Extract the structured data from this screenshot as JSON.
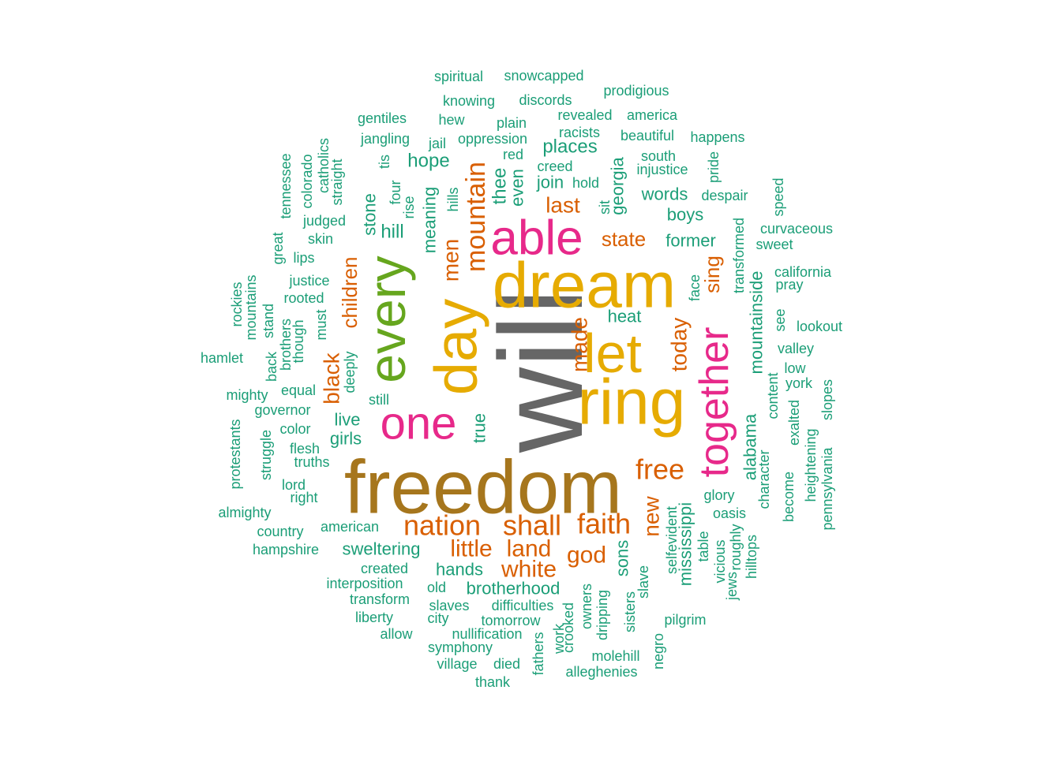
{
  "palette": {
    "teal": "#1b9e77",
    "orange": "#d95f02",
    "pink": "#e7298a",
    "green": "#66a61e",
    "gold": "#e6ab02",
    "brown": "#a6761d",
    "gray": "#666666"
  },
  "words": [
    {
      "text": "will",
      "color": "gray"
    },
    {
      "text": "freedom",
      "color": "brown"
    },
    {
      "text": "dream",
      "color": "gold"
    },
    {
      "text": "ring",
      "color": "gold"
    },
    {
      "text": "let",
      "color": "gold"
    },
    {
      "text": "day",
      "color": "gold"
    },
    {
      "text": "every",
      "color": "green"
    },
    {
      "text": "able",
      "color": "pink"
    },
    {
      "text": "one",
      "color": "pink"
    },
    {
      "text": "together",
      "color": "pink"
    },
    {
      "text": "nation",
      "color": "orange"
    },
    {
      "text": "shall",
      "color": "orange"
    },
    {
      "text": "faith",
      "color": "orange"
    },
    {
      "text": "free",
      "color": "orange"
    },
    {
      "text": "mountain",
      "color": "orange"
    },
    {
      "text": "little",
      "color": "orange"
    },
    {
      "text": "land",
      "color": "orange"
    },
    {
      "text": "white",
      "color": "orange"
    },
    {
      "text": "god",
      "color": "orange"
    },
    {
      "text": "men",
      "color": "orange"
    },
    {
      "text": "made",
      "color": "orange"
    },
    {
      "text": "today",
      "color": "orange"
    },
    {
      "text": "new",
      "color": "orange"
    },
    {
      "text": "black",
      "color": "orange"
    },
    {
      "text": "children",
      "color": "orange"
    },
    {
      "text": "last",
      "color": "orange"
    },
    {
      "text": "state",
      "color": "orange"
    },
    {
      "text": "sing",
      "color": "orange"
    },
    {
      "text": "hill",
      "color": "teal"
    },
    {
      "text": "stone",
      "color": "teal"
    },
    {
      "text": "meaning",
      "color": "teal"
    },
    {
      "text": "hope",
      "color": "teal"
    },
    {
      "text": "places",
      "color": "teal"
    },
    {
      "text": "thee",
      "color": "teal"
    },
    {
      "text": "even",
      "color": "teal"
    },
    {
      "text": "join",
      "color": "teal"
    },
    {
      "text": "georgia",
      "color": "teal"
    },
    {
      "text": "words",
      "color": "teal"
    },
    {
      "text": "boys",
      "color": "teal"
    },
    {
      "text": "former",
      "color": "teal"
    },
    {
      "text": "heat",
      "color": "teal"
    },
    {
      "text": "mountainside",
      "color": "teal"
    },
    {
      "text": "alabama",
      "color": "teal"
    },
    {
      "text": "mississippi",
      "color": "teal"
    },
    {
      "text": "live",
      "color": "teal"
    },
    {
      "text": "girls",
      "color": "teal"
    },
    {
      "text": "true",
      "color": "teal"
    },
    {
      "text": "sweltering",
      "color": "teal"
    },
    {
      "text": "hands",
      "color": "teal"
    },
    {
      "text": "brotherhood",
      "color": "teal"
    },
    {
      "text": "sons",
      "color": "teal"
    },
    {
      "text": "spiritual",
      "color": "teal"
    },
    {
      "text": "snowcapped",
      "color": "teal"
    },
    {
      "text": "prodigious",
      "color": "teal"
    },
    {
      "text": "knowing",
      "color": "teal"
    },
    {
      "text": "discords",
      "color": "teal"
    },
    {
      "text": "gentiles",
      "color": "teal"
    },
    {
      "text": "hew",
      "color": "teal"
    },
    {
      "text": "plain",
      "color": "teal"
    },
    {
      "text": "revealed",
      "color": "teal"
    },
    {
      "text": "america",
      "color": "teal"
    },
    {
      "text": "racists",
      "color": "teal"
    },
    {
      "text": "beautiful",
      "color": "teal"
    },
    {
      "text": "happens",
      "color": "teal"
    },
    {
      "text": "jangling",
      "color": "teal"
    },
    {
      "text": "jail",
      "color": "teal"
    },
    {
      "text": "oppression",
      "color": "teal"
    },
    {
      "text": "red",
      "color": "teal"
    },
    {
      "text": "south",
      "color": "teal"
    },
    {
      "text": "injustice",
      "color": "teal"
    },
    {
      "text": "creed",
      "color": "teal"
    },
    {
      "text": "hold",
      "color": "teal"
    },
    {
      "text": "despair",
      "color": "teal"
    },
    {
      "text": "pride",
      "color": "teal"
    },
    {
      "text": "speed",
      "color": "teal"
    },
    {
      "text": "curvaceous",
      "color": "teal"
    },
    {
      "text": "sweet",
      "color": "teal"
    },
    {
      "text": "california",
      "color": "teal"
    },
    {
      "text": "pray",
      "color": "teal"
    },
    {
      "text": "transformed",
      "color": "teal"
    },
    {
      "text": "face",
      "color": "teal"
    },
    {
      "text": "see",
      "color": "teal"
    },
    {
      "text": "lookout",
      "color": "teal"
    },
    {
      "text": "valley",
      "color": "teal"
    },
    {
      "text": "low",
      "color": "teal"
    },
    {
      "text": "york",
      "color": "teal"
    },
    {
      "text": "content",
      "color": "teal"
    },
    {
      "text": "exalted",
      "color": "teal"
    },
    {
      "text": "become",
      "color": "teal"
    },
    {
      "text": "heightening",
      "color": "teal"
    },
    {
      "text": "slopes",
      "color": "teal"
    },
    {
      "text": "pennsylvania",
      "color": "teal"
    },
    {
      "text": "character",
      "color": "teal"
    },
    {
      "text": "glory",
      "color": "teal"
    },
    {
      "text": "oasis",
      "color": "teal"
    },
    {
      "text": "selfevident",
      "color": "teal"
    },
    {
      "text": "table",
      "color": "teal"
    },
    {
      "text": "vicious",
      "color": "teal"
    },
    {
      "text": "jews",
      "color": "teal"
    },
    {
      "text": "roughly",
      "color": "teal"
    },
    {
      "text": "hilltops",
      "color": "teal"
    },
    {
      "text": "slave",
      "color": "teal"
    },
    {
      "text": "sisters",
      "color": "teal"
    },
    {
      "text": "pilgrim",
      "color": "teal"
    },
    {
      "text": "negro",
      "color": "teal"
    },
    {
      "text": "molehill",
      "color": "teal"
    },
    {
      "text": "alleghenies",
      "color": "teal"
    },
    {
      "text": "owners",
      "color": "teal"
    },
    {
      "text": "dripping",
      "color": "teal"
    },
    {
      "text": "crooked",
      "color": "teal"
    },
    {
      "text": "work",
      "color": "teal"
    },
    {
      "text": "fathers",
      "color": "teal"
    },
    {
      "text": "thank",
      "color": "teal"
    },
    {
      "text": "died",
      "color": "teal"
    },
    {
      "text": "village",
      "color": "teal"
    },
    {
      "text": "symphony",
      "color": "teal"
    },
    {
      "text": "nullification",
      "color": "teal"
    },
    {
      "text": "allow",
      "color": "teal"
    },
    {
      "text": "city",
      "color": "teal"
    },
    {
      "text": "tomorrow",
      "color": "teal"
    },
    {
      "text": "liberty",
      "color": "teal"
    },
    {
      "text": "slaves",
      "color": "teal"
    },
    {
      "text": "difficulties",
      "color": "teal"
    },
    {
      "text": "transform",
      "color": "teal"
    },
    {
      "text": "old",
      "color": "teal"
    },
    {
      "text": "interposition",
      "color": "teal"
    },
    {
      "text": "created",
      "color": "teal"
    },
    {
      "text": "hampshire",
      "color": "teal"
    },
    {
      "text": "american",
      "color": "teal"
    },
    {
      "text": "country",
      "color": "teal"
    },
    {
      "text": "almighty",
      "color": "teal"
    },
    {
      "text": "right",
      "color": "teal"
    },
    {
      "text": "lord",
      "color": "teal"
    },
    {
      "text": "truths",
      "color": "teal"
    },
    {
      "text": "flesh",
      "color": "teal"
    },
    {
      "text": "color",
      "color": "teal"
    },
    {
      "text": "governor",
      "color": "teal"
    },
    {
      "text": "equal",
      "color": "teal"
    },
    {
      "text": "mighty",
      "color": "teal"
    },
    {
      "text": "protestants",
      "color": "teal"
    },
    {
      "text": "struggle",
      "color": "teal"
    },
    {
      "text": "still",
      "color": "teal"
    },
    {
      "text": "deeply",
      "color": "teal"
    },
    {
      "text": "must",
      "color": "teal"
    },
    {
      "text": "hamlet",
      "color": "teal"
    },
    {
      "text": "back",
      "color": "teal"
    },
    {
      "text": "stand",
      "color": "teal"
    },
    {
      "text": "brothers",
      "color": "teal"
    },
    {
      "text": "though",
      "color": "teal"
    },
    {
      "text": "rockies",
      "color": "teal"
    },
    {
      "text": "mountains",
      "color": "teal"
    },
    {
      "text": "rooted",
      "color": "teal"
    },
    {
      "text": "justice",
      "color": "teal"
    },
    {
      "text": "great",
      "color": "teal"
    },
    {
      "text": "lips",
      "color": "teal"
    },
    {
      "text": "skin",
      "color": "teal"
    },
    {
      "text": "judged",
      "color": "teal"
    },
    {
      "text": "tennessee",
      "color": "teal"
    },
    {
      "text": "colorado",
      "color": "teal"
    },
    {
      "text": "catholics",
      "color": "teal"
    },
    {
      "text": "straight",
      "color": "teal"
    },
    {
      "text": "tis",
      "color": "teal"
    },
    {
      "text": "four",
      "color": "teal"
    },
    {
      "text": "rise",
      "color": "teal"
    },
    {
      "text": "hills",
      "color": "teal"
    },
    {
      "text": "sit",
      "color": "teal"
    }
  ]
}
